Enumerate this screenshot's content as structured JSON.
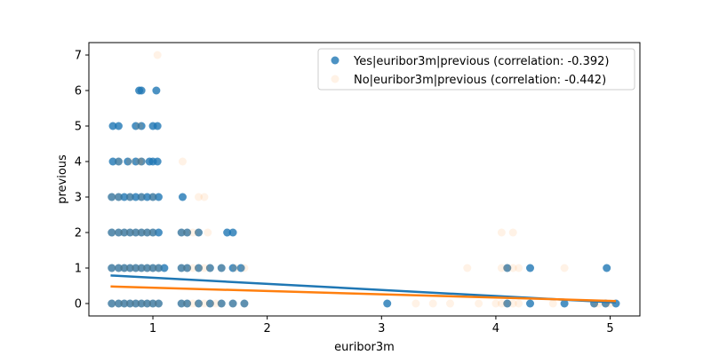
{
  "chart_data": {
    "type": "scatter",
    "title": "",
    "xlabel": "euribor3m",
    "ylabel": "previous",
    "xlim": [
      0.44,
      5.26
    ],
    "ylim": [
      -0.35,
      7.35
    ],
    "xticks": [
      1,
      2,
      3,
      4,
      5
    ],
    "yticks": [
      0,
      1,
      2,
      3,
      4,
      5,
      6,
      7
    ],
    "grid": false,
    "legend_position": "top-right",
    "series": [
      {
        "name": "Yes|euribor3m|previous (correlation: -0.392)",
        "color": "#1f77b4",
        "alpha": 0.8,
        "regression": [
          [
            0.63,
            0.79
          ],
          [
            5.05,
            0.03
          ]
        ],
        "points": [
          [
            0.64,
            0
          ],
          [
            0.7,
            0
          ],
          [
            0.75,
            0
          ],
          [
            0.8,
            0
          ],
          [
            0.85,
            0
          ],
          [
            0.9,
            0
          ],
          [
            0.95,
            0
          ],
          [
            1.0,
            0
          ],
          [
            1.05,
            0
          ],
          [
            1.25,
            0
          ],
          [
            1.3,
            0
          ],
          [
            1.4,
            0
          ],
          [
            1.5,
            0
          ],
          [
            1.6,
            0
          ],
          [
            1.7,
            0
          ],
          [
            1.8,
            0
          ],
          [
            3.05,
            0
          ],
          [
            4.1,
            0
          ],
          [
            4.3,
            0
          ],
          [
            4.6,
            0
          ],
          [
            4.86,
            0
          ],
          [
            4.96,
            0
          ],
          [
            5.05,
            0
          ],
          [
            0.64,
            1
          ],
          [
            0.7,
            1
          ],
          [
            0.75,
            1
          ],
          [
            0.8,
            1
          ],
          [
            0.85,
            1
          ],
          [
            0.9,
            1
          ],
          [
            0.95,
            1
          ],
          [
            1.0,
            1
          ],
          [
            1.05,
            1
          ],
          [
            1.1,
            1
          ],
          [
            1.25,
            1
          ],
          [
            1.3,
            1
          ],
          [
            1.4,
            1
          ],
          [
            1.5,
            1
          ],
          [
            1.6,
            1
          ],
          [
            1.7,
            1
          ],
          [
            1.77,
            1
          ],
          [
            4.1,
            1
          ],
          [
            4.3,
            1
          ],
          [
            4.97,
            1
          ],
          [
            0.64,
            2
          ],
          [
            0.7,
            2
          ],
          [
            0.75,
            2
          ],
          [
            0.8,
            2
          ],
          [
            0.85,
            2
          ],
          [
            0.9,
            2
          ],
          [
            0.95,
            2
          ],
          [
            1.0,
            2
          ],
          [
            1.05,
            2
          ],
          [
            1.25,
            2
          ],
          [
            1.3,
            2
          ],
          [
            1.4,
            2
          ],
          [
            1.65,
            2
          ],
          [
            1.7,
            2
          ],
          [
            0.64,
            3
          ],
          [
            0.7,
            3
          ],
          [
            0.75,
            3
          ],
          [
            0.8,
            3
          ],
          [
            0.85,
            3
          ],
          [
            0.9,
            3
          ],
          [
            0.95,
            3
          ],
          [
            1.0,
            3
          ],
          [
            1.05,
            3
          ],
          [
            1.26,
            3
          ],
          [
            0.65,
            4
          ],
          [
            0.7,
            4
          ],
          [
            0.78,
            4
          ],
          [
            0.85,
            4
          ],
          [
            0.9,
            4
          ],
          [
            0.97,
            4
          ],
          [
            1.0,
            4
          ],
          [
            1.04,
            4
          ],
          [
            0.65,
            5
          ],
          [
            0.7,
            5
          ],
          [
            0.85,
            5
          ],
          [
            0.9,
            5
          ],
          [
            1.0,
            5
          ],
          [
            1.04,
            5
          ],
          [
            0.88,
            6
          ],
          [
            0.9,
            6
          ],
          [
            1.03,
            6
          ]
        ]
      },
      {
        "name": "No|euribor3m|previous (correlation: -0.442)",
        "color": "#ff7f0e",
        "alpha": 0.1,
        "regression": [
          [
            0.63,
            0.48
          ],
          [
            5.05,
            0.07
          ]
        ],
        "points": [
          [
            0.64,
            0
          ],
          [
            0.7,
            0
          ],
          [
            0.75,
            0
          ],
          [
            0.8,
            0
          ],
          [
            0.85,
            0
          ],
          [
            0.9,
            0
          ],
          [
            0.95,
            0
          ],
          [
            1.0,
            0
          ],
          [
            1.05,
            0
          ],
          [
            1.25,
            0
          ],
          [
            1.3,
            0
          ],
          [
            1.35,
            0
          ],
          [
            1.4,
            0
          ],
          [
            1.45,
            0
          ],
          [
            1.5,
            0
          ],
          [
            1.55,
            0
          ],
          [
            1.6,
            0
          ],
          [
            1.7,
            0
          ],
          [
            1.8,
            0
          ],
          [
            3.3,
            0
          ],
          [
            3.45,
            0
          ],
          [
            3.6,
            0
          ],
          [
            3.85,
            0
          ],
          [
            4.0,
            0
          ],
          [
            4.05,
            0
          ],
          [
            4.1,
            0
          ],
          [
            4.15,
            0
          ],
          [
            4.2,
            0
          ],
          [
            4.5,
            0
          ],
          [
            4.86,
            0
          ],
          [
            4.9,
            0
          ],
          [
            4.96,
            0
          ],
          [
            5.0,
            0
          ],
          [
            0.64,
            1
          ],
          [
            0.7,
            1
          ],
          [
            0.75,
            1
          ],
          [
            0.8,
            1
          ],
          [
            0.85,
            1
          ],
          [
            0.9,
            1
          ],
          [
            0.95,
            1
          ],
          [
            1.0,
            1
          ],
          [
            1.05,
            1
          ],
          [
            1.25,
            1
          ],
          [
            1.3,
            1
          ],
          [
            1.35,
            1
          ],
          [
            1.4,
            1
          ],
          [
            1.45,
            1
          ],
          [
            1.5,
            1
          ],
          [
            1.6,
            1
          ],
          [
            1.72,
            1
          ],
          [
            1.8,
            1
          ],
          [
            3.75,
            1
          ],
          [
            4.05,
            1
          ],
          [
            4.1,
            1
          ],
          [
            4.15,
            1
          ],
          [
            4.2,
            1
          ],
          [
            4.6,
            1
          ],
          [
            0.64,
            2
          ],
          [
            0.7,
            2
          ],
          [
            0.75,
            2
          ],
          [
            0.8,
            2
          ],
          [
            0.85,
            2
          ],
          [
            0.9,
            2
          ],
          [
            0.95,
            2
          ],
          [
            1.0,
            2
          ],
          [
            1.25,
            2
          ],
          [
            1.3,
            2
          ],
          [
            1.35,
            2
          ],
          [
            1.4,
            2
          ],
          [
            1.48,
            2
          ],
          [
            4.05,
            2
          ],
          [
            4.15,
            2
          ],
          [
            0.64,
            3
          ],
          [
            0.7,
            3
          ],
          [
            0.8,
            3
          ],
          [
            0.9,
            3
          ],
          [
            1.0,
            3
          ],
          [
            1.4,
            3
          ],
          [
            1.45,
            3
          ],
          [
            0.7,
            4
          ],
          [
            0.8,
            4
          ],
          [
            0.88,
            4
          ],
          [
            0.9,
            4
          ],
          [
            1.26,
            4
          ],
          [
            0.88,
            5
          ],
          [
            1.04,
            7
          ]
        ]
      }
    ]
  }
}
